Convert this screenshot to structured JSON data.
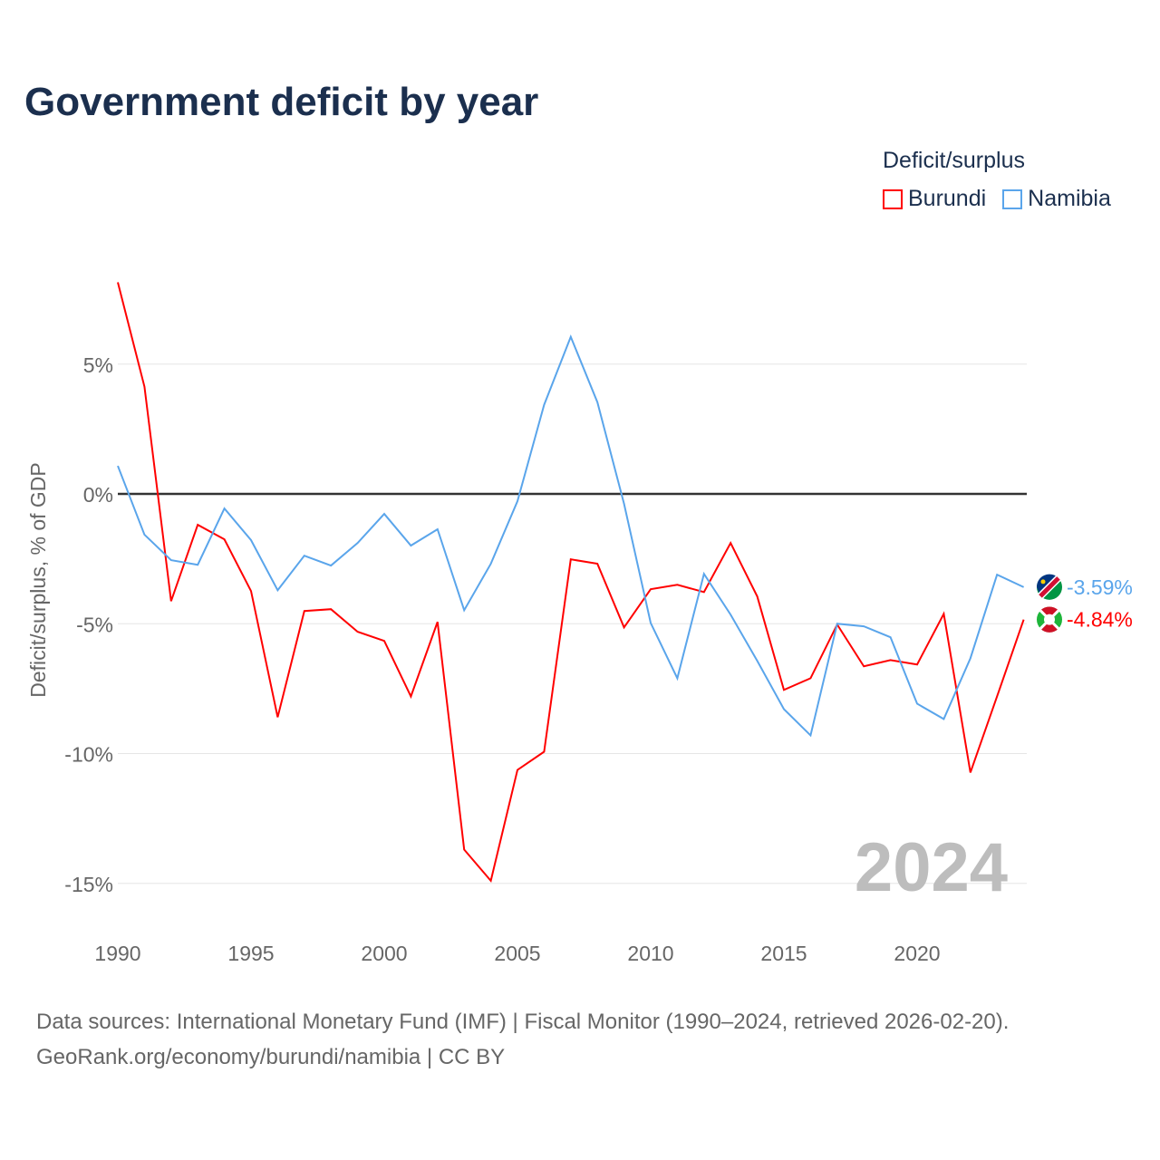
{
  "title": "Government deficit by year",
  "legend": {
    "title": "Deficit/surplus",
    "items": [
      {
        "label": "Burundi",
        "color": "#ff0000"
      },
      {
        "label": "Namibia",
        "color": "#5aa5eb"
      }
    ]
  },
  "year_watermark": "2024",
  "source": {
    "line1": "Data sources: International Monetary Fund (IMF) | Fiscal Monitor (1990–2024, retrieved 2026-02-20).",
    "line2": "GeoRank.org/economy/burundi/namibia | CC BY"
  },
  "end_labels": {
    "namibia": "-3.59%",
    "burundi": "-4.84%"
  },
  "chart_data": {
    "type": "line",
    "title": "Government deficit by year",
    "xlabel": "",
    "ylabel": "Deficit/surplus, % of GDP",
    "xlim": [
      1990,
      2024
    ],
    "ylim": [
      -16.5,
      8.5
    ],
    "x_ticks": [
      1990,
      1995,
      2000,
      2005,
      2010,
      2015,
      2020
    ],
    "y_ticks": [
      {
        "v": 5,
        "label": "5%"
      },
      {
        "v": 0,
        "label": "0%"
      },
      {
        "v": -5,
        "label": "-5%"
      },
      {
        "v": -10,
        "label": "-10%"
      },
      {
        "v": -15,
        "label": "-15%"
      }
    ],
    "grid": true,
    "legend_position": "top-right",
    "x": [
      1990,
      1991,
      1992,
      1993,
      1994,
      1995,
      1996,
      1997,
      1998,
      1999,
      2000,
      2001,
      2002,
      2003,
      2004,
      2005,
      2006,
      2007,
      2008,
      2009,
      2010,
      2011,
      2012,
      2013,
      2014,
      2015,
      2016,
      2017,
      2018,
      2019,
      2020,
      2021,
      2022,
      2023,
      2024
    ],
    "series": [
      {
        "name": "Burundi",
        "color": "#ff0000",
        "values": [
          8.15,
          4.13,
          -4.13,
          -1.19,
          -1.75,
          -3.74,
          -8.6,
          -4.51,
          -4.44,
          -5.31,
          -5.66,
          -7.8,
          -4.93,
          -13.7,
          -14.9,
          -10.63,
          -9.93,
          -2.52,
          -2.69,
          -5.14,
          -3.67,
          -3.5,
          -3.78,
          -1.89,
          -3.95,
          -7.55,
          -7.1,
          -5.03,
          -6.64,
          -6.4,
          -6.57,
          -4.62,
          -10.73,
          -7.8,
          -4.84
        ]
      },
      {
        "name": "Namibia",
        "color": "#5aa5eb",
        "values": [
          1.08,
          -1.57,
          -2.55,
          -2.73,
          -0.56,
          -1.78,
          -3.71,
          -2.38,
          -2.76,
          -1.89,
          -0.77,
          -1.99,
          -1.36,
          -4.48,
          -2.69,
          -0.28,
          3.43,
          6.05,
          3.53,
          -0.38,
          -4.97,
          -7.1,
          -3.08,
          -4.65,
          -6.43,
          -8.29,
          -9.3,
          -5.0,
          -5.1,
          -5.52,
          -8.08,
          -8.67,
          -6.33,
          -3.11,
          -3.59
        ]
      }
    ]
  }
}
